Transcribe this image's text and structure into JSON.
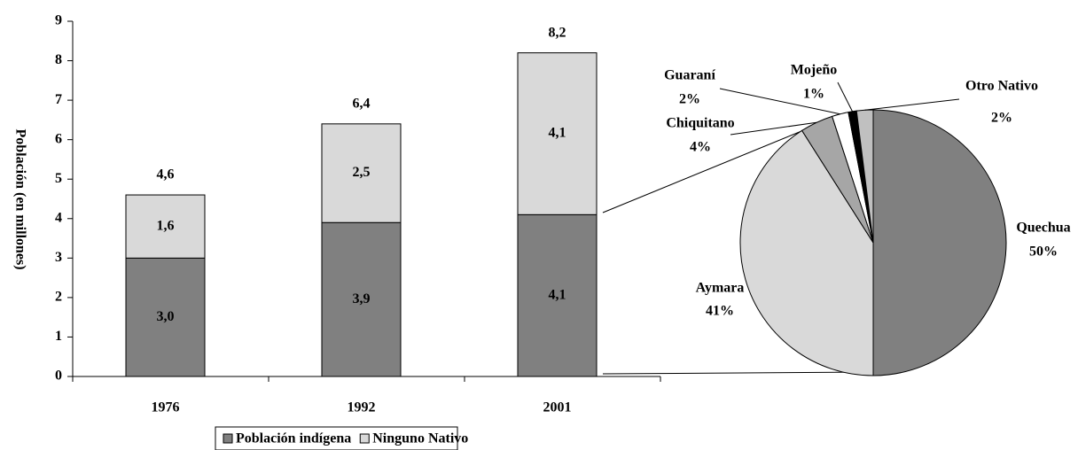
{
  "chart_data": [
    {
      "type": "bar",
      "stacked": true,
      "ylabel": "Población (en millones)",
      "categories": [
        "1976",
        "1992",
        "2001"
      ],
      "series": [
        {
          "name": "Población indígena",
          "color": "#808080",
          "values": [
            3.0,
            3.9,
            4.1
          ],
          "value_labels": [
            "3,0",
            "3,9",
            "4,1"
          ]
        },
        {
          "name": "Ninguno Nativo",
          "color": "#d9d9d9",
          "values": [
            1.6,
            2.5,
            4.1
          ],
          "value_labels": [
            "1,6",
            "2,5",
            "4,1"
          ]
        }
      ],
      "totals": [
        4.6,
        6.4,
        8.2
      ],
      "total_labels": [
        "4,6",
        "6,4",
        "8,2"
      ],
      "ylim": [
        0,
        9
      ],
      "yticks": [
        0,
        1,
        2,
        3,
        4,
        5,
        6,
        7,
        8,
        9
      ],
      "legend": "bottom"
    },
    {
      "type": "pie",
      "categories": [
        "Quechua",
        "Aymara",
        "Chiquitano",
        "Guaraní",
        "Mojeño",
        "Otro Nativo"
      ],
      "values": [
        50,
        41,
        4,
        2,
        1,
        2
      ],
      "value_labels": [
        "50%",
        "41%",
        "4%",
        "2%",
        "1%",
        "2%"
      ],
      "colors": [
        "#808080",
        "#d9d9d9",
        "#a6a6a6",
        "#ffffff",
        "#000000",
        "#c0c0c0"
      ]
    }
  ]
}
